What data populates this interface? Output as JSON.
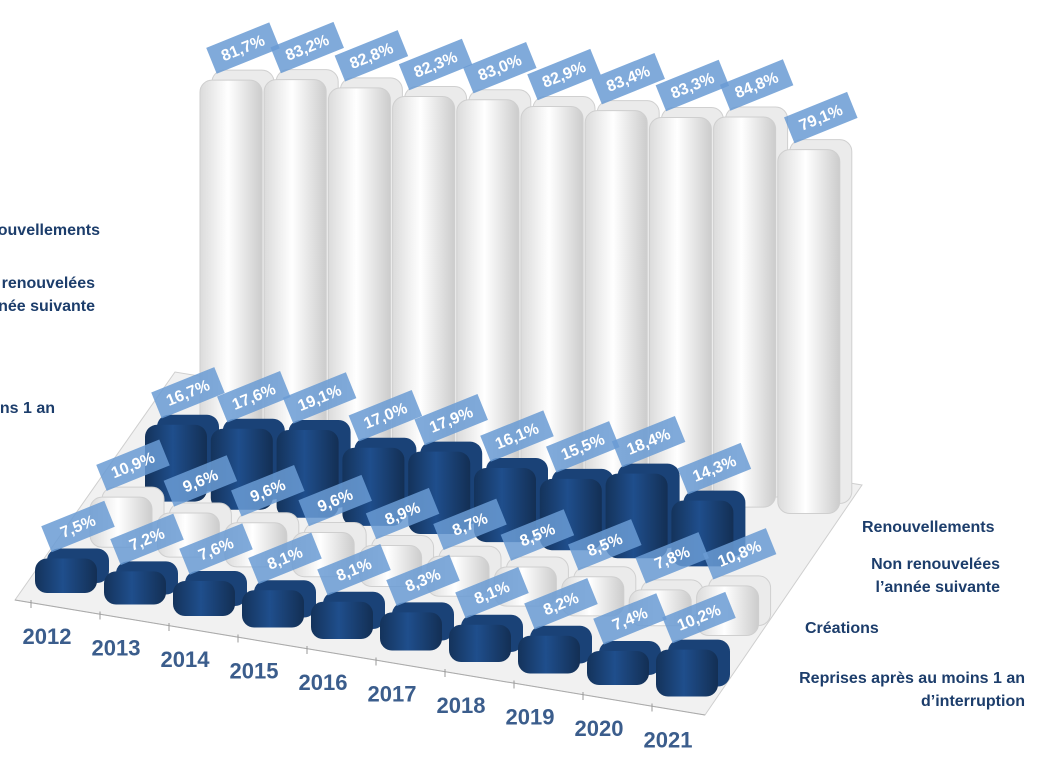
{
  "chart_data": {
    "type": "bar3d",
    "categories": [
      "2012",
      "2013",
      "2014",
      "2015",
      "2016",
      "2017",
      "2018",
      "2019",
      "2020",
      "2021"
    ],
    "series": [
      {
        "name": "Renouvellements",
        "color": "#ffffff",
        "values": [
          81.7,
          83.2,
          82.8,
          82.3,
          83.0,
          82.9,
          83.4,
          83.3,
          84.8,
          79.1
        ],
        "value_labels": [
          "81,7%",
          "83,2%",
          "82,8%",
          "82,3%",
          "83,0%",
          "82,9%",
          "83,4%",
          "83,3%",
          "84,8%",
          "79,1%"
        ]
      },
      {
        "name": "Non renouvelées l’année suivante",
        "color": "#1f4e8c",
        "values": [
          16.7,
          17.6,
          19.1,
          17.0,
          17.9,
          16.1,
          15.5,
          18.4,
          14.3,
          null
        ],
        "value_labels": [
          "16,7%",
          "17,6%",
          "19,1%",
          "17,0%",
          "17,9%",
          "16,1%",
          "15,5%",
          "18,4%",
          "14,3%",
          null
        ]
      },
      {
        "name": "Créations",
        "color": "#ffffff",
        "values": [
          10.9,
          9.6,
          9.6,
          9.6,
          8.9,
          8.7,
          8.5,
          8.5,
          7.8,
          10.8
        ],
        "value_labels": [
          "10,9%",
          "9,6%",
          "9,6%",
          "9,6%",
          "8,9%",
          "8,7%",
          "8,5%",
          "8,5%",
          "7,8%",
          "10,8%"
        ]
      },
      {
        "name": "Reprises après au moins 1 an d’interruption",
        "color": "#1f4e8c",
        "values": [
          7.5,
          7.2,
          7.6,
          8.1,
          8.1,
          8.3,
          8.1,
          8.2,
          7.4,
          10.2
        ],
        "value_labels": [
          "7,5%",
          "7,2%",
          "7,6%",
          "8,1%",
          "8,1%",
          "8,3%",
          "8,1%",
          "8,2%",
          "7,4%",
          "10,2%"
        ]
      }
    ]
  }
}
